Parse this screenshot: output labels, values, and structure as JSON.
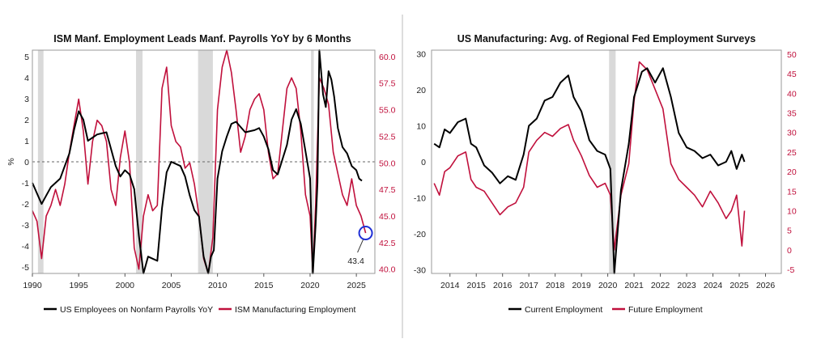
{
  "colors": {
    "black": "#000000",
    "red": "#c0103c",
    "recession": "#d9d9d9",
    "annotation": "#1f2fd6",
    "frame": "#999999"
  },
  "chart_data": [
    {
      "type": "line",
      "title": "ISM Manf. Employment Leads Manf. Payrolls YoY by 6 Months",
      "ylabel": "%",
      "x_ticks": [
        "1990",
        "1995",
        "2000",
        "2005",
        "2010",
        "2015",
        "2020",
        "2025"
      ],
      "xlim": [
        1990,
        2027
      ],
      "ylim_left": [
        -5.3,
        5.3
      ],
      "ylim_right": [
        39.6,
        60.6
      ],
      "left_ticks": [
        "5",
        "4",
        "3",
        "2",
        "1",
        "0",
        "-1",
        "-2",
        "-3",
        "-4",
        "-5"
      ],
      "right_ticks": [
        "60.0",
        "57.5",
        "55.0",
        "52.5",
        "50.0",
        "47.5",
        "45.0",
        "42.5",
        "40.0"
      ],
      "recessions": [
        [
          1990.6,
          1991.2
        ],
        [
          2001.2,
          2001.9
        ],
        [
          2007.9,
          2009.5
        ],
        [
          2020.1,
          2020.4
        ]
      ],
      "reference_line": 0,
      "annotation": {
        "label": "43.4",
        "x": 2026.0,
        "y": 43.4
      },
      "legend": [
        "US Employees on Nonfarm Payrolls YoY",
        "ISM Manufacturing Employment"
      ],
      "series": [
        {
          "name": "US Employees on Nonfarm Payrolls YoY",
          "axis": "left",
          "color": "#000000",
          "x": [
            1990,
            1990.5,
            1991,
            1991.5,
            1992,
            1993,
            1994,
            1994.5,
            1995,
            1995.5,
            1996,
            1997,
            1998,
            1998.5,
            1999,
            1999.5,
            2000,
            2000.5,
            2001,
            2001.5,
            2002,
            2002.5,
            2003,
            2003.5,
            2004,
            2004.5,
            2005,
            2006,
            2006.5,
            2007,
            2007.5,
            2008,
            2008.5,
            2009,
            2009.3,
            2009.6,
            2010,
            2010.5,
            2011,
            2011.5,
            2012,
            2013,
            2014,
            2014.5,
            2015,
            2015.5,
            2016,
            2016.5,
            2017,
            2017.5,
            2018,
            2018.5,
            2019,
            2019.5,
            2020,
            2020.3,
            2020.6,
            2020.8,
            2021,
            2021.4,
            2021.7,
            2022,
            2022.3,
            2022.6,
            2023,
            2023.5,
            2024,
            2024.5,
            2025,
            2025.3,
            2025.6
          ],
          "y": [
            -1.0,
            -1.5,
            -2.0,
            -1.6,
            -1.2,
            -0.8,
            0.4,
            1.5,
            2.4,
            2.0,
            1.0,
            1.3,
            1.4,
            0.6,
            -0.2,
            -0.7,
            -0.4,
            -0.6,
            -1.3,
            -3.5,
            -5.3,
            -4.5,
            -4.6,
            -4.7,
            -2.2,
            -0.5,
            0.0,
            -0.2,
            -0.7,
            -1.6,
            -2.3,
            -2.6,
            -4.5,
            -5.3,
            -4.5,
            -4.2,
            -0.8,
            0.5,
            1.2,
            1.8,
            1.9,
            1.4,
            1.5,
            1.6,
            1.2,
            0.6,
            -0.4,
            -0.6,
            0.1,
            0.8,
            2.0,
            2.5,
            1.8,
            0.5,
            -0.8,
            -5.3,
            -3.0,
            -1.0,
            5.3,
            3.2,
            2.6,
            4.3,
            3.9,
            3.1,
            1.6,
            0.7,
            0.4,
            -0.2,
            -0.4,
            -0.8,
            -0.9
          ]
        },
        {
          "name": "ISM Manufacturing Employment",
          "axis": "right",
          "color": "#c0103c",
          "x": [
            1990,
            1990.5,
            1991,
            1991.5,
            1992,
            1992.5,
            1993,
            1993.5,
            1994,
            1994.5,
            1995,
            1995.5,
            1996,
            1996.5,
            1997,
            1997.5,
            1998,
            1998.5,
            1999,
            1999.5,
            2000,
            2000.5,
            2001,
            2001.5,
            2002,
            2002.5,
            2003,
            2003.5,
            2004,
            2004.5,
            2005,
            2005.5,
            2006,
            2006.5,
            2007,
            2007.5,
            2008,
            2008.5,
            2009,
            2009.5,
            2010,
            2010.5,
            2011,
            2011.5,
            2012,
            2012.5,
            2013,
            2013.5,
            2014,
            2014.5,
            2015,
            2015.5,
            2016,
            2016.5,
            2017,
            2017.5,
            2018,
            2018.5,
            2019,
            2019.5,
            2020,
            2020.3,
            2020.6,
            2021,
            2021.5,
            2022,
            2022.5,
            2023,
            2023.5,
            2024,
            2024.5,
            2025,
            2025.5,
            2026
          ],
          "y": [
            45.5,
            44.5,
            41.0,
            45.0,
            46.0,
            47.5,
            46.0,
            48.0,
            51.0,
            53.5,
            56.0,
            53.0,
            48.0,
            52.0,
            54.0,
            53.5,
            52.0,
            47.5,
            46.0,
            50.5,
            53.0,
            50.0,
            42.0,
            40.0,
            45.0,
            47.0,
            45.5,
            46.0,
            57.0,
            59.0,
            53.5,
            52.0,
            51.5,
            49.5,
            50.0,
            48.0,
            45.0,
            41.0,
            39.6,
            43.0,
            55.0,
            59.0,
            61.0,
            58.5,
            55.0,
            51.0,
            52.5,
            55.0,
            56.0,
            56.5,
            55.0,
            51.0,
            48.5,
            49.0,
            53.0,
            57.0,
            58.0,
            57.0,
            53.0,
            47.0,
            45.0,
            39.6,
            46.0,
            58.0,
            57.0,
            55.5,
            51.0,
            49.0,
            47.0,
            46.0,
            48.5,
            46.0,
            45.0,
            43.4
          ]
        }
      ]
    },
    {
      "type": "line",
      "title": "US Manufacturing: Avg. of Regional Fed Employment Surveys",
      "x_ticks": [
        "2014",
        "2015",
        "2016",
        "2017",
        "2018",
        "2019",
        "2020",
        "2021",
        "2022",
        "2023",
        "2024",
        "2025",
        "2026"
      ],
      "xlim": [
        2013.3,
        2026.6
      ],
      "ylim_left": [
        -31,
        31
      ],
      "ylim_right": [
        -6,
        51
      ],
      "left_ticks": [
        "30",
        "20",
        "10",
        "0",
        "-10",
        "-20",
        "-30"
      ],
      "right_ticks": [
        "50",
        "45",
        "40",
        "35",
        "30",
        "25",
        "20",
        "15",
        "10",
        "5",
        "0",
        "-5"
      ],
      "recessions": [
        [
          2020.05,
          2020.3
        ]
      ],
      "legend": [
        "Current Employment",
        "Future Employment"
      ],
      "series": [
        {
          "name": "Current Employment",
          "axis": "left",
          "color": "#000000",
          "x": [
            2013.4,
            2013.6,
            2013.8,
            2014,
            2014.3,
            2014.6,
            2014.8,
            2015,
            2015.3,
            2015.6,
            2015.9,
            2016.2,
            2016.5,
            2016.8,
            2017,
            2017.3,
            2017.6,
            2017.9,
            2018.2,
            2018.5,
            2018.7,
            2019,
            2019.3,
            2019.6,
            2019.9,
            2020.1,
            2020.25,
            2020.5,
            2020.8,
            2021,
            2021.3,
            2021.5,
            2021.8,
            2022.1,
            2022.4,
            2022.7,
            2023,
            2023.3,
            2023.6,
            2023.9,
            2024.2,
            2024.5,
            2024.7,
            2024.9,
            2025.1,
            2025.2
          ],
          "y": [
            5,
            4,
            9,
            8,
            11,
            12,
            5,
            4,
            -1,
            -3,
            -6,
            -4,
            -5,
            2,
            10,
            12,
            17,
            18,
            22,
            24,
            18,
            14,
            6,
            3,
            2,
            -2,
            -31,
            -8,
            5,
            18,
            25,
            26,
            22,
            26,
            18,
            8,
            4,
            3,
            1,
            2,
            -1,
            0,
            3,
            -2,
            2,
            0
          ]
        },
        {
          "name": "Future Employment",
          "axis": "right",
          "color": "#c0103c",
          "x": [
            2013.4,
            2013.6,
            2013.8,
            2014,
            2014.3,
            2014.6,
            2014.8,
            2015,
            2015.3,
            2015.6,
            2015.9,
            2016.2,
            2016.5,
            2016.8,
            2017,
            2017.3,
            2017.6,
            2017.9,
            2018.2,
            2018.5,
            2018.7,
            2019,
            2019.3,
            2019.6,
            2019.9,
            2020.1,
            2020.25,
            2020.5,
            2020.8,
            2021,
            2021.2,
            2021.5,
            2021.8,
            2022.1,
            2022.4,
            2022.7,
            2023,
            2023.3,
            2023.6,
            2023.9,
            2024.2,
            2024.5,
            2024.7,
            2024.9,
            2025.1,
            2025.2
          ],
          "y": [
            17,
            14,
            20,
            21,
            24,
            25,
            18,
            16,
            15,
            12,
            9,
            11,
            12,
            16,
            25,
            28,
            30,
            29,
            31,
            32,
            28,
            24,
            19,
            16,
            17,
            14,
            0,
            14,
            22,
            38,
            48,
            46,
            41,
            36,
            22,
            18,
            16,
            14,
            11,
            15,
            12,
            8,
            10,
            14,
            1,
            10
          ]
        }
      ]
    }
  ]
}
